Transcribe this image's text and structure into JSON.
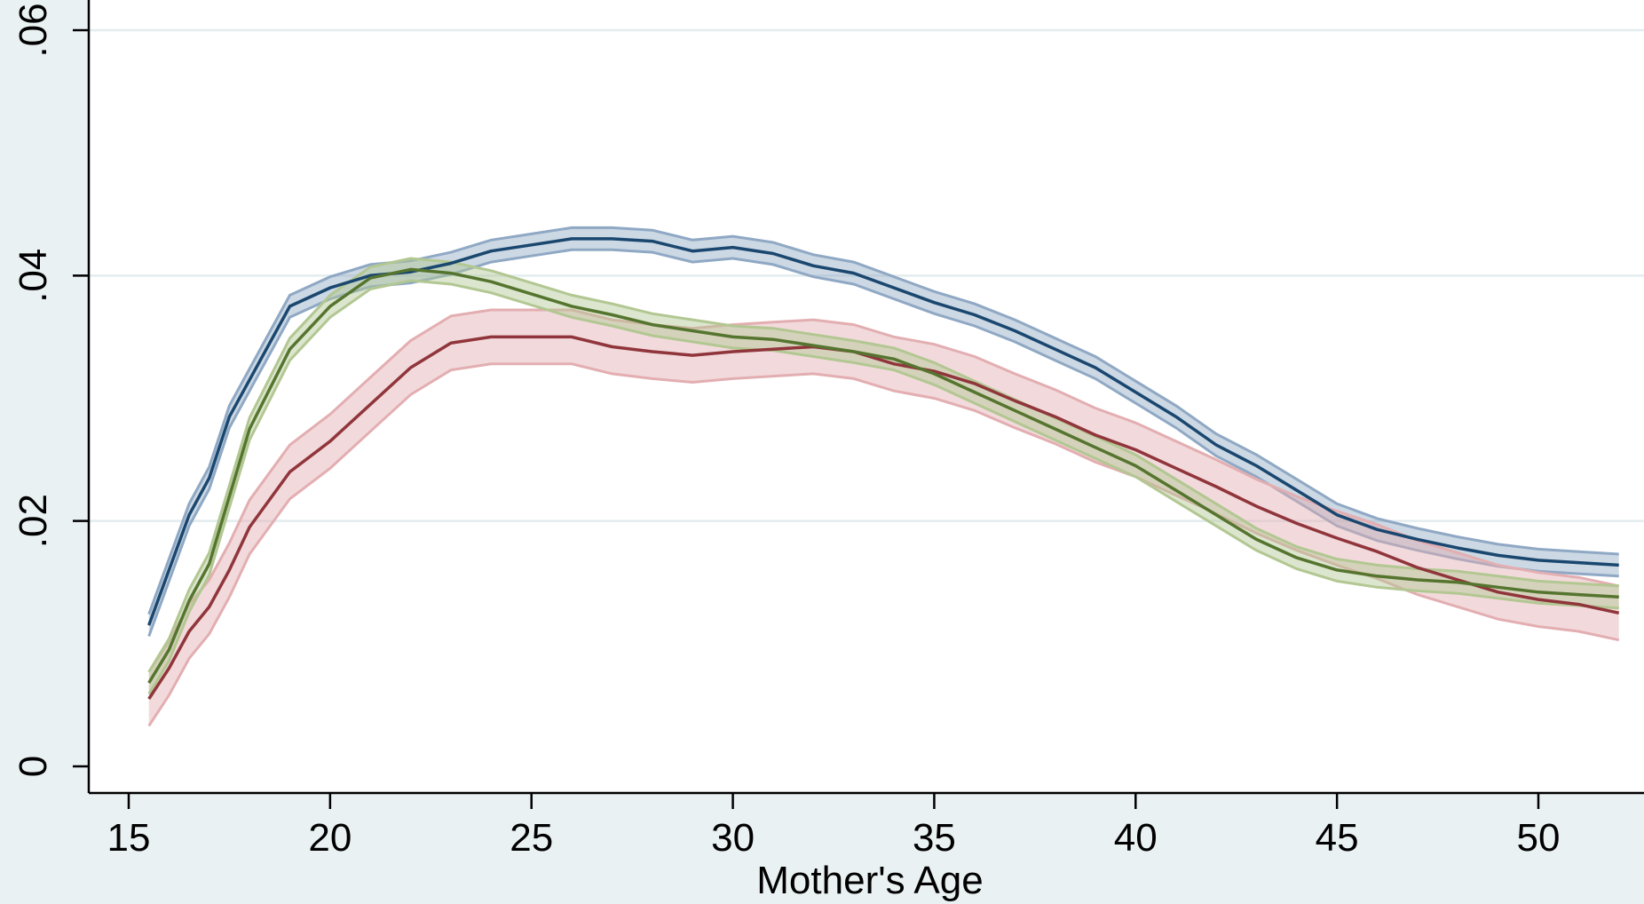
{
  "chart_data": {
    "type": "line",
    "title": "",
    "xlabel": "Mother's Age",
    "ylabel": "",
    "xlim": [
      15,
      52
    ],
    "ylim": [
      0,
      0.06
    ],
    "x_ticks": [
      15,
      20,
      25,
      30,
      35,
      40,
      45,
      50
    ],
    "x_tick_labels": [
      "15",
      "20",
      "25",
      "30",
      "35",
      "40",
      "45",
      "50"
    ],
    "y_ticks": [
      0,
      0.02,
      0.04,
      0.06
    ],
    "y_tick_labels": [
      "0",
      ".02",
      ".04",
      ".06"
    ],
    "grid": true,
    "legend": "none",
    "x": [
      15.5,
      16,
      16.5,
      17,
      17.5,
      18,
      19,
      20,
      21,
      22,
      23,
      24,
      25,
      26,
      27,
      28,
      29,
      30,
      31,
      32,
      33,
      34,
      35,
      36,
      37,
      38,
      39,
      40,
      41,
      42,
      43,
      44,
      45,
      46,
      47,
      48,
      49,
      50,
      51,
      52
    ],
    "series": [
      {
        "color": "#1a476f",
        "band_color": "#8fa8c4",
        "values": [
          0.0115,
          0.016,
          0.0205,
          0.0235,
          0.0285,
          0.0315,
          0.0375,
          0.039,
          0.04,
          0.0403,
          0.041,
          0.042,
          0.0425,
          0.043,
          0.043,
          0.0428,
          0.042,
          0.0423,
          0.0418,
          0.0408,
          0.0402,
          0.039,
          0.0378,
          0.0368,
          0.0355,
          0.034,
          0.0325,
          0.0305,
          0.0285,
          0.0262,
          0.0245,
          0.0225,
          0.0205,
          0.0193,
          0.0185,
          0.0178,
          0.0172,
          0.0168,
          0.0166,
          0.0164
        ],
        "band_half_width": 0.0009
      },
      {
        "color": "#90353b",
        "band_color": "#e3aeb1",
        "values": [
          0.0055,
          0.008,
          0.011,
          0.013,
          0.016,
          0.0195,
          0.024,
          0.0265,
          0.0295,
          0.0325,
          0.0345,
          0.035,
          0.035,
          0.035,
          0.0342,
          0.0338,
          0.0335,
          0.0338,
          0.034,
          0.0342,
          0.0338,
          0.0328,
          0.0322,
          0.0312,
          0.0298,
          0.0285,
          0.027,
          0.0258,
          0.0243,
          0.0228,
          0.0212,
          0.0198,
          0.0186,
          0.0175,
          0.0162,
          0.0152,
          0.0142,
          0.0136,
          0.0132,
          0.0125
        ],
        "band_half_width": 0.0022
      },
      {
        "color": "#55752f",
        "band_color": "#b2c792",
        "values": [
          0.0068,
          0.0095,
          0.0135,
          0.0165,
          0.022,
          0.0275,
          0.034,
          0.0375,
          0.0398,
          0.0405,
          0.0402,
          0.0395,
          0.0385,
          0.0375,
          0.0368,
          0.036,
          0.0355,
          0.035,
          0.0348,
          0.0343,
          0.0338,
          0.0332,
          0.032,
          0.0305,
          0.029,
          0.0275,
          0.026,
          0.0245,
          0.0225,
          0.0205,
          0.0185,
          0.017,
          0.016,
          0.0155,
          0.0152,
          0.015,
          0.0146,
          0.0142,
          0.014,
          0.0138
        ],
        "band_half_width": 0.0009
      }
    ]
  }
}
